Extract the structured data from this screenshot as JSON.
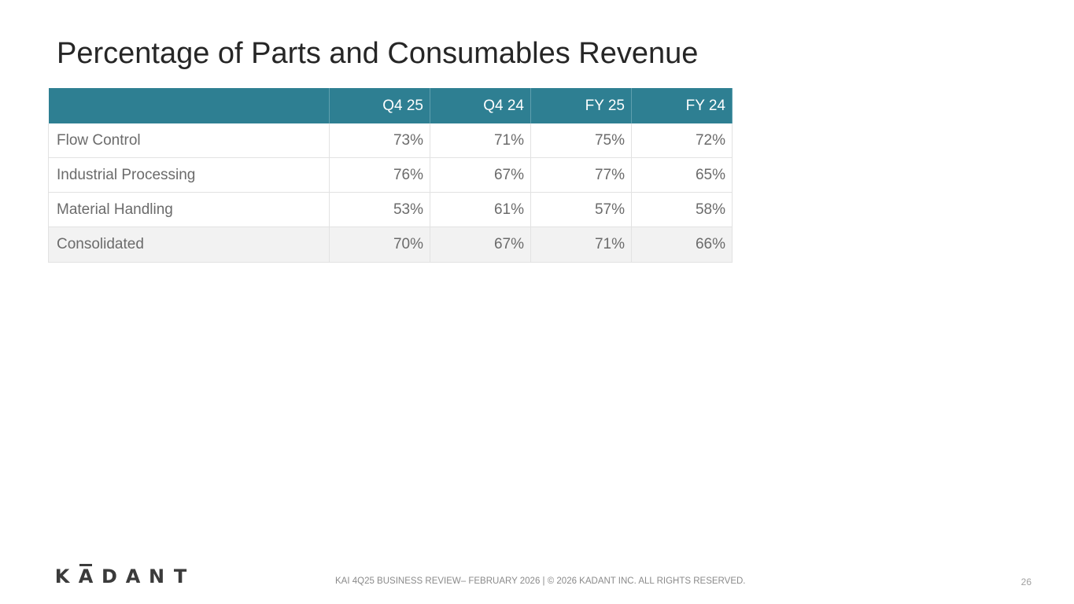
{
  "title": "Percentage of Parts and Consumables Revenue",
  "table": {
    "headers": [
      "",
      "Q4 25",
      "Q4 24",
      "FY 25",
      "FY 24"
    ],
    "rows": [
      {
        "label": "Flow Control",
        "values": [
          "73%",
          "71%",
          "75%",
          "72%"
        ]
      },
      {
        "label": "Industrial Processing",
        "values": [
          "76%",
          "67%",
          "77%",
          "65%"
        ]
      },
      {
        "label": "Material Handling",
        "values": [
          "53%",
          "61%",
          "57%",
          "58%"
        ]
      },
      {
        "label": "Consolidated",
        "values": [
          "70%",
          "67%",
          "71%",
          "66%"
        ]
      }
    ]
  },
  "logo": {
    "letters": [
      "K",
      "A",
      "D",
      "A",
      "N",
      "T"
    ],
    "text": "KĀDANT"
  },
  "footer": {
    "text": "KAI 4Q25 BUSINESS REVIEW– FEBRUARY 2026  |  © 2026 KADANT INC. ALL RIGHTS RESERVED.",
    "page_number": "26"
  },
  "colors": {
    "header_bg": "#2e7f92",
    "total_row_bg": "#f2f2f2",
    "body_text": "#6b6b6b"
  }
}
